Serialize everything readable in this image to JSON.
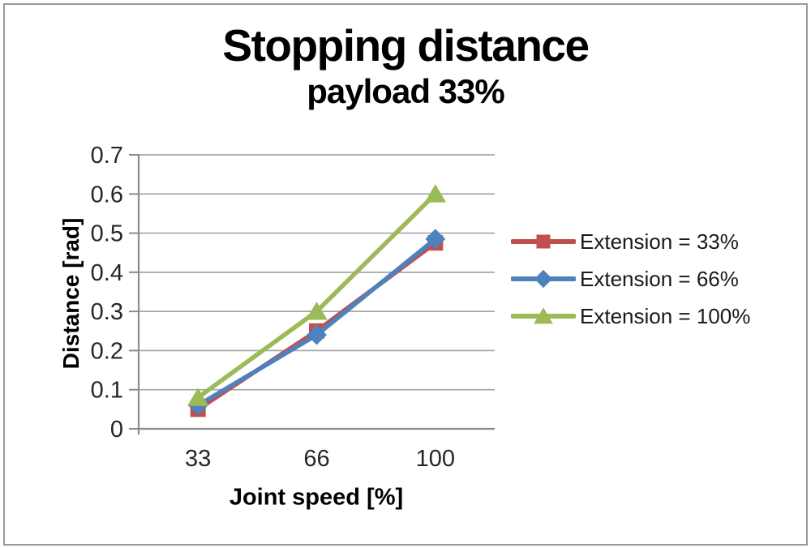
{
  "chart_data": {
    "type": "line",
    "title": "Stopping distance",
    "subtitle": "payload 33%",
    "xlabel": "Joint speed [%]",
    "ylabel": "Distance [rad]",
    "categories": [
      "33",
      "66",
      "100"
    ],
    "ylim": [
      0,
      0.7
    ],
    "ytick_values": [
      0,
      0.1,
      0.2,
      0.3,
      0.4,
      0.5,
      0.6,
      0.7
    ],
    "ytick_labels": [
      "0",
      "0.1",
      "0.2",
      "0.3",
      "0.4",
      "0.5",
      "0.6",
      "0.7"
    ],
    "grid": true,
    "legend_position": "right",
    "series": [
      {
        "name": "Extension = 33%",
        "color": "#C0504D",
        "marker": "square",
        "values": [
          0.05,
          0.25,
          0.475
        ]
      },
      {
        "name": "Extension = 66%",
        "color": "#4F81BD",
        "marker": "diamond",
        "values": [
          0.06,
          0.24,
          0.485
        ]
      },
      {
        "name": "Extension = 100%",
        "color": "#9BBB59",
        "marker": "triangle",
        "values": [
          0.08,
          0.3,
          0.6
        ]
      }
    ],
    "colors": {
      "gridline": "#A6A6A6",
      "axis": "#8C8C8C",
      "tick_text": "#262626",
      "title_text": "#000000",
      "frame_border": "#9A9A9A"
    }
  }
}
